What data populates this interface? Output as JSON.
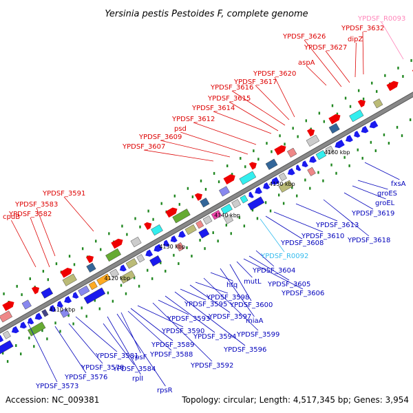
{
  "title": "Yersinia pestis Pestoides F, complete genome",
  "footer": {
    "accession": "Accession: NC_009381",
    "stats": "Topology: circular; Length: 4,517,345 bp; Genes: 3,954"
  },
  "colors": {
    "top_label": "#dd0000",
    "bottom_label": "#0000bb",
    "rna_label": "#33bbee",
    "pink_label": "#ff88bb",
    "backbone": "#888888",
    "forward_gene": "#ee0000",
    "reverse_gene": "#1a1aee"
  },
  "ticks": [
    "4110 kbp",
    "4120 kbp",
    "4130 kbp",
    "4140 kbp",
    "4150 kbp",
    "4160 kbp"
  ],
  "top_labels": [
    "cpdB",
    "YPDSF_3582",
    "YPDSF_3583",
    "YPDSF_3591",
    "YPDSF_3607",
    "YPDSF_3609",
    "psd",
    "YPDSF_3612",
    "YPDSF_3614",
    "YPDSF_3615",
    "YPDSF_3616",
    "YPDSF_3617",
    "YPDSF_3620",
    "aspA",
    "YPDSF_3626",
    "YPDSF_3627",
    "dipZ",
    "YPDSF_3632",
    "YPDSF_R0093"
  ],
  "bottom_labels": [
    "YPDSF_3573",
    "YPDSF_3576",
    "YPDSF_3578",
    "YPDSF_3581",
    "YPDSF_3584",
    "rplI",
    "rpsR",
    "rpsF",
    "YPDSF_3588",
    "YPDSF_3589",
    "YPDSF_3590",
    "YPDSF_3592",
    "YPDSF_3593",
    "YPDSF_3594",
    "YPDSF_3596",
    "YPDSF_3595",
    "YPDSF_3597",
    "YPDSF_3598",
    "YPDSF_3599",
    "hfq",
    "miaA",
    "YPDSF_3600",
    "mutL",
    "YPDSF_3606",
    "YPDSF_3605",
    "YPDSF_3604",
    "YPDSF_R0092",
    "YPDSF_3608",
    "YPDSF_3610",
    "YPDSF_3613",
    "YPDSF_3618",
    "YPDSF_3619",
    "groEL",
    "groES",
    "fxsA"
  ]
}
